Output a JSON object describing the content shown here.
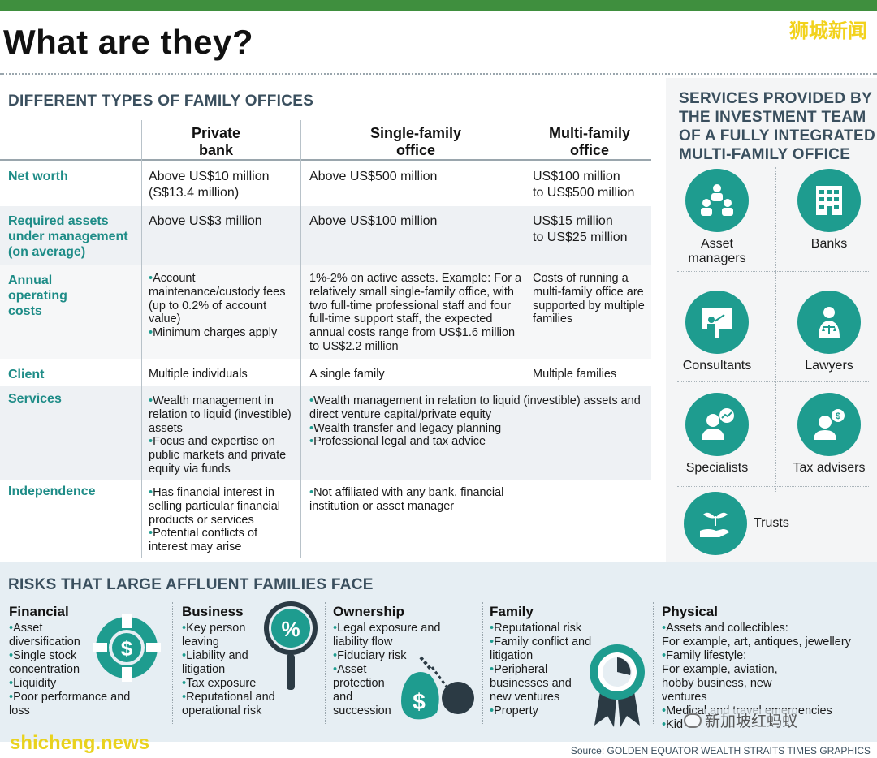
{
  "header": {
    "title": "What are they?",
    "watermark_cn": "狮城新闻"
  },
  "types": {
    "title": "DIFFERENT TYPES OF FAMILY OFFICES",
    "columns": [
      "Private\nbank",
      "Single-family\noffice",
      "Multi-family\noffice"
    ],
    "rows": {
      "net_worth": {
        "label": "Net worth",
        "private": "Above US$10 million\n(S$13.4 million)",
        "single": "Above US$500 million",
        "multi": "US$100 million\nto US$500 million"
      },
      "aum": {
        "label": "Required assets\nunder management\n(on average)",
        "private": "Above US$3 million",
        "single": "Above US$100 million",
        "multi": "US$15 million\nto US$25 million"
      },
      "costs": {
        "label": "Annual\noperating\ncosts",
        "private": [
          "Account maintenance/custody fees (up to 0.2% of account value)",
          "Minimum charges apply"
        ],
        "single": "1%-2% on active assets. Example: For a relatively small single-family office, with two full-time professional staff and four full-time support staff, the expected annual costs range from US$1.6 million to US$2.2 million",
        "multi": "Costs of running a multi-family office are supported by multiple families"
      },
      "client": {
        "label": "Client",
        "private": "Multiple individuals",
        "single": "A single family",
        "multi": "Multiple families"
      },
      "services": {
        "label": "Services",
        "private": [
          "Wealth management in relation to liquid (investible) assets",
          "Focus and expertise on public markets and private equity via funds"
        ],
        "office": [
          "Wealth management in relation to liquid (investible) assets and direct venture capital/private equity",
          "Wealth transfer and legacy planning",
          "Professional legal and tax advice"
        ]
      },
      "independence": {
        "label": "Independence",
        "private": [
          "Has financial interest in selling particular financial products or services",
          "Potential conflicts of interest may arise"
        ],
        "office": [
          "Not affiliated with any bank, financial institution or asset manager"
        ]
      }
    }
  },
  "services_panel": {
    "title": "SERVICES PROVIDED BY\nTHE INVESTMENT TEAM\nOF A FULLY INTEGRATED\nMULTI-FAMILY OFFICE",
    "items": [
      {
        "label": "Asset\nmanagers",
        "icon": "people-group-icon"
      },
      {
        "label": "Banks",
        "icon": "bank-building-icon"
      },
      {
        "label": "Consultants",
        "icon": "presentation-board-icon"
      },
      {
        "label": "Lawyers",
        "icon": "lawyer-scales-icon"
      },
      {
        "label": "Specialists",
        "icon": "specialist-chart-icon"
      },
      {
        "label": "Tax advisers",
        "icon": "tax-adviser-icon"
      },
      {
        "label": "Trusts",
        "icon": "plant-hand-icon"
      }
    ]
  },
  "risks": {
    "title": "RISKS THAT LARGE AFFLUENT FAMILIES FACE",
    "groups": [
      {
        "name": "Financial",
        "items": [
          "Asset diversification",
          "Single stock concentration",
          "Liquidity",
          "Poor performance and loss"
        ]
      },
      {
        "name": "Business",
        "items": [
          "Key person leaving",
          "Liability and litigation",
          "Tax exposure",
          "Reputational and operational risk"
        ]
      },
      {
        "name": "Ownership",
        "items": [
          "Legal exposure and liability flow",
          "Fiduciary risk",
          "Asset protection and succession"
        ]
      },
      {
        "name": "Family",
        "items": [
          "Reputational risk",
          "Family conflict and litigation",
          "Peripheral businesses and new ventures",
          "Property"
        ]
      },
      {
        "name": "Physical",
        "items": [
          "Assets and collectibles:",
          "For example, art, antiques, jewellery",
          "Family lifestyle:",
          "For example, aviation, hobby business, new ventures",
          "Medical and travel emergencies",
          "Kid"
        ]
      }
    ]
  },
  "footer": {
    "source": "Source: GOLDEN EQUATOR WEALTH   STRAITS TIMES GRAPHICS",
    "watermark_en": "shicheng.news",
    "watermark_cn2": "新加坡红蚂蚁"
  },
  "colors": {
    "accent_green": "#3f8f3e",
    "teal": "#1e9c8f",
    "label_teal": "#1e8c87",
    "watermark_yellow": "#f2d21d"
  }
}
